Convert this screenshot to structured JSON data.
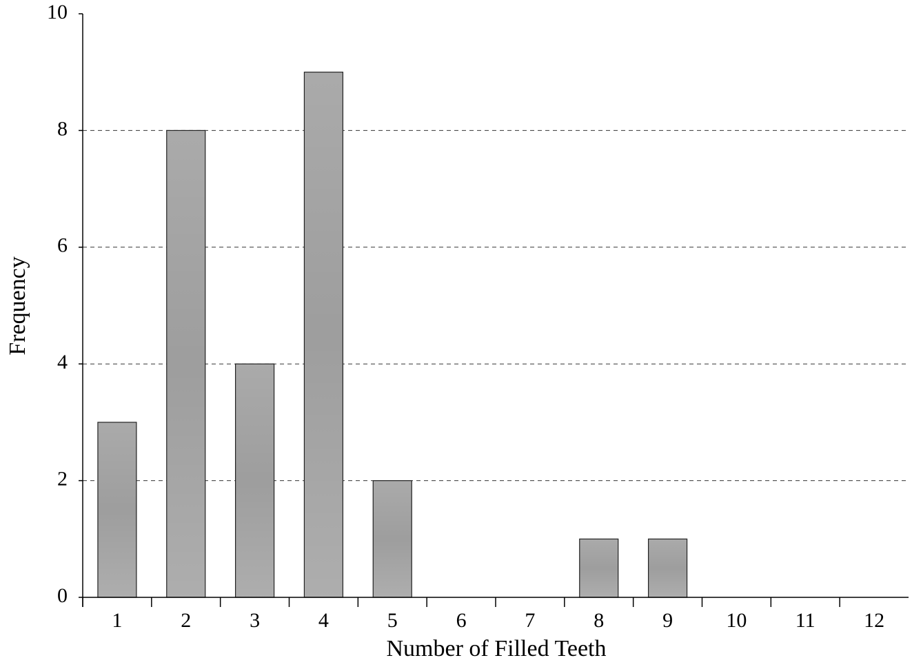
{
  "chart_data": {
    "type": "bar",
    "x_label": "Number of Filled Teeth",
    "y_label": "Frequency",
    "categories": [
      "1",
      "2",
      "3",
      "4",
      "5",
      "6",
      "7",
      "8",
      "9",
      "10",
      "11",
      "12"
    ],
    "values": [
      3,
      8,
      4,
      9,
      2,
      0,
      0,
      1,
      1,
      0,
      0,
      0
    ],
    "color": "#b3b3b3",
    "ylim": [
      0,
      10
    ],
    "yticks": [
      0,
      2,
      4,
      6,
      8,
      10
    ],
    "grid": true
  }
}
